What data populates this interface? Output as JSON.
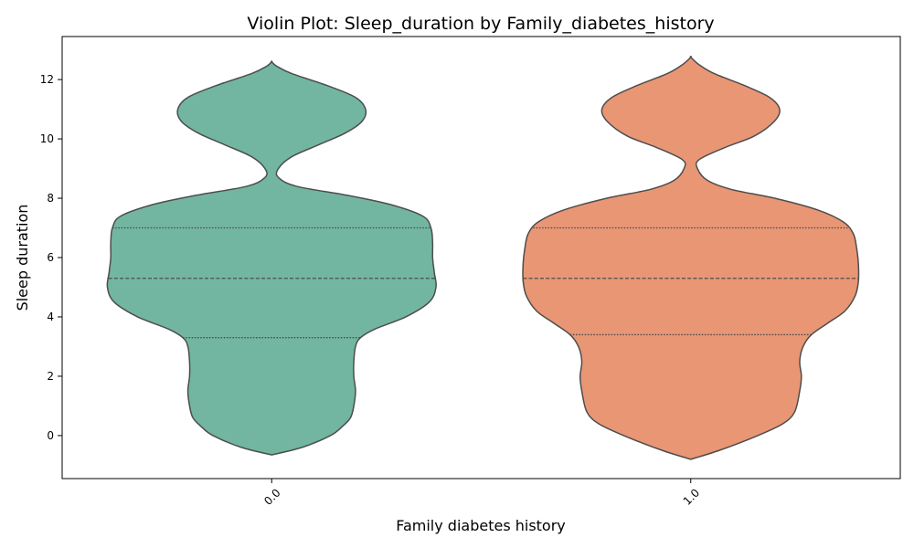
{
  "chart_data": {
    "type": "violin",
    "title": "Violin Plot: Sleep_duration by Family_diabetes_history",
    "xlabel": "Family diabetes history",
    "ylabel": "Sleep duration",
    "categories": [
      "0.0",
      "1.0"
    ],
    "ylim": [
      -1.45,
      13.45
    ],
    "yticks": [
      0,
      2,
      4,
      6,
      8,
      10,
      12
    ],
    "grid": false,
    "colors": [
      "#72b6a1",
      "#e99675"
    ],
    "edge_color": "#4d4d4d",
    "violins": [
      {
        "category": "0.0",
        "quartiles": [
          3.3,
          5.3,
          7.0
        ],
        "density_profile": [
          [
            -0.65,
            0.0
          ],
          [
            -0.4,
            0.18
          ],
          [
            0.0,
            0.35
          ],
          [
            0.3,
            0.42
          ],
          [
            0.6,
            0.47
          ],
          [
            1.0,
            0.49
          ],
          [
            1.5,
            0.5
          ],
          [
            2.0,
            0.49
          ],
          [
            2.5,
            0.49
          ],
          [
            3.0,
            0.5
          ],
          [
            3.3,
            0.53
          ],
          [
            3.6,
            0.62
          ],
          [
            4.0,
            0.8
          ],
          [
            4.5,
            0.94
          ],
          [
            5.0,
            0.98
          ],
          [
            5.5,
            0.97
          ],
          [
            6.0,
            0.96
          ],
          [
            6.5,
            0.96
          ],
          [
            7.0,
            0.95
          ],
          [
            7.4,
            0.9
          ],
          [
            7.8,
            0.7
          ],
          [
            8.1,
            0.45
          ],
          [
            8.4,
            0.15
          ],
          [
            8.7,
            0.04
          ],
          [
            9.0,
            0.04
          ],
          [
            9.4,
            0.12
          ],
          [
            9.8,
            0.28
          ],
          [
            10.2,
            0.44
          ],
          [
            10.6,
            0.54
          ],
          [
            11.0,
            0.56
          ],
          [
            11.4,
            0.5
          ],
          [
            11.8,
            0.33
          ],
          [
            12.2,
            0.12
          ],
          [
            12.45,
            0.03
          ],
          [
            12.6,
            0.0
          ]
        ]
      },
      {
        "category": "1.0",
        "quartiles": [
          3.4,
          5.3,
          7.0
        ],
        "density_profile": [
          [
            -0.8,
            0.0
          ],
          [
            -0.5,
            0.17
          ],
          [
            0.0,
            0.4
          ],
          [
            0.4,
            0.55
          ],
          [
            0.8,
            0.62
          ],
          [
            1.5,
            0.65
          ],
          [
            2.0,
            0.66
          ],
          [
            2.5,
            0.65
          ],
          [
            3.0,
            0.67
          ],
          [
            3.4,
            0.72
          ],
          [
            3.8,
            0.82
          ],
          [
            4.2,
            0.92
          ],
          [
            4.7,
            0.98
          ],
          [
            5.2,
            1.0
          ],
          [
            5.8,
            1.0
          ],
          [
            6.3,
            0.99
          ],
          [
            6.8,
            0.97
          ],
          [
            7.2,
            0.91
          ],
          [
            7.6,
            0.76
          ],
          [
            8.0,
            0.5
          ],
          [
            8.3,
            0.24
          ],
          [
            8.6,
            0.1
          ],
          [
            9.0,
            0.04
          ],
          [
            9.3,
            0.05
          ],
          [
            9.7,
            0.2
          ],
          [
            10.1,
            0.38
          ],
          [
            10.6,
            0.5
          ],
          [
            11.0,
            0.53
          ],
          [
            11.4,
            0.47
          ],
          [
            11.8,
            0.32
          ],
          [
            12.2,
            0.14
          ],
          [
            12.5,
            0.05
          ],
          [
            12.75,
            0.0
          ]
        ]
      }
    ]
  }
}
